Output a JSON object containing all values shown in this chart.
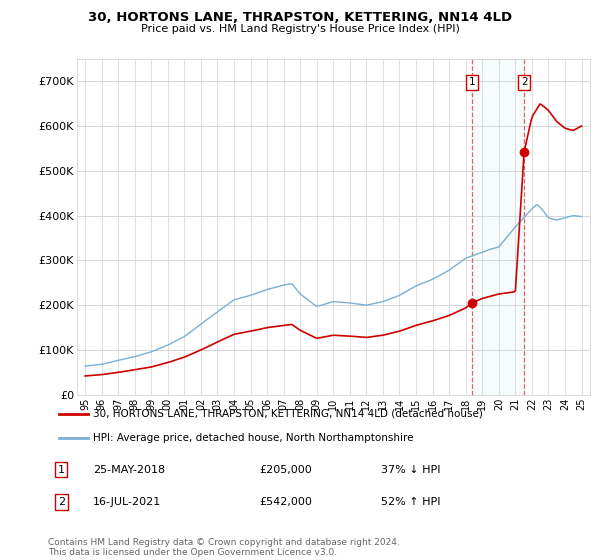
{
  "title": "30, HORTONS LANE, THRAPSTON, KETTERING, NN14 4LD",
  "subtitle": "Price paid vs. HM Land Registry's House Price Index (HPI)",
  "legend_line1": "30, HORTONS LANE, THRAPSTON, KETTERING, NN14 4LD (detached house)",
  "legend_line2": "HPI: Average price, detached house, North Northamptonshire",
  "footnote": "Contains HM Land Registry data © Crown copyright and database right 2024.\nThis data is licensed under the Open Government Licence v3.0.",
  "sale1_label": "1",
  "sale1_date": "25-MAY-2018",
  "sale1_price": "£205,000",
  "sale1_hpi": "37% ↓ HPI",
  "sale1_year": 2018.38,
  "sale1_value": 205000,
  "sale2_label": "2",
  "sale2_date": "16-JUL-2021",
  "sale2_price": "£542,000",
  "sale2_hpi": "52% ↑ HPI",
  "sale2_year": 2021.53,
  "sale2_value": 542000,
  "property_color": "#cc0000",
  "hpi_color": "#7bafd4",
  "ylim_max": 750000,
  "xlim_start": 1994.5,
  "xlim_end": 2025.5
}
